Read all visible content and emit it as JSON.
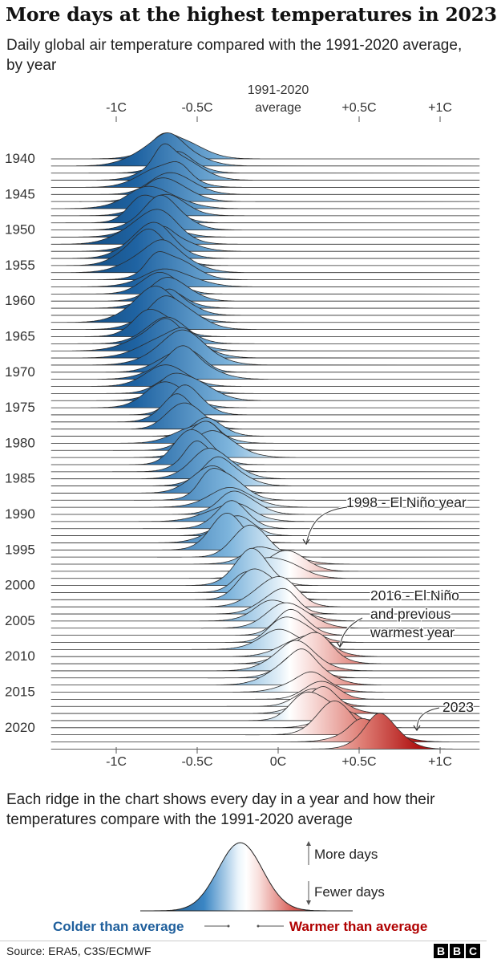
{
  "header": {
    "title": "More days at the highest temperatures in 2023",
    "subtitle": "Daily global air temperature compared with the 1991-2020 average, by year"
  },
  "chart_data": {
    "type": "ridgeline",
    "x_unit": "°C anomaly vs 1991-2020 average",
    "xlim": [
      -1.4,
      1.2
    ],
    "top_axis": {
      "ticks": [
        {
          "value": -1.0,
          "label": "-1C"
        },
        {
          "value": -0.5,
          "label": "-0.5C"
        },
        {
          "value": 0.5,
          "label": "+0.5C"
        },
        {
          "value": 1.0,
          "label": "+1C"
        }
      ],
      "center_label": [
        "1991-2020",
        "average"
      ],
      "center_value": 0.0
    },
    "bottom_axis": {
      "ticks": [
        {
          "value": -1.0,
          "label": "-1C"
        },
        {
          "value": -0.5,
          "label": "-0.5C"
        },
        {
          "value": 0.0,
          "label": "0C"
        },
        {
          "value": 0.5,
          "label": "+0.5C"
        },
        {
          "value": 1.0,
          "label": "+1C"
        }
      ]
    },
    "y_labels": [
      "1940",
      "1945",
      "1950",
      "1955",
      "1960",
      "1965",
      "1970",
      "1975",
      "1980",
      "1985",
      "1990",
      "1995",
      "2000",
      "2005",
      "2010",
      "2015",
      "2020"
    ],
    "years": [
      1940,
      2023
    ],
    "yearly_mean_anomaly": [
      {
        "year": 1940,
        "mean": -0.63
      },
      {
        "year": 1945,
        "mean": -0.66
      },
      {
        "year": 1950,
        "mean": -0.78
      },
      {
        "year": 1955,
        "mean": -0.74
      },
      {
        "year": 1960,
        "mean": -0.66
      },
      {
        "year": 1965,
        "mean": -0.7
      },
      {
        "year": 1970,
        "mean": -0.62
      },
      {
        "year": 1975,
        "mean": -0.64
      },
      {
        "year": 1980,
        "mean": -0.45
      },
      {
        "year": 1985,
        "mean": -0.44
      },
      {
        "year": 1990,
        "mean": -0.3
      },
      {
        "year": 1995,
        "mean": -0.25
      },
      {
        "year": 1998,
        "mean": 0.05
      },
      {
        "year": 2000,
        "mean": -0.1
      },
      {
        "year": 2005,
        "mean": 0.02
      },
      {
        "year": 2010,
        "mean": 0.1
      },
      {
        "year": 2015,
        "mean": 0.22
      },
      {
        "year": 2016,
        "mean": 0.3
      },
      {
        "year": 2020,
        "mean": 0.3
      },
      {
        "year": 2023,
        "mean": 0.6
      }
    ],
    "colors": {
      "cold": "#0c4a7c",
      "neutral": "#ffffff",
      "warm": "#8a0a0a",
      "line": "#333333"
    },
    "annotations": [
      {
        "year": 1998,
        "lines": [
          "1998 - El Niño year"
        ]
      },
      {
        "year": 2016,
        "lines": [
          "2016 - El Niño",
          "and previous",
          "warmest year"
        ]
      },
      {
        "year": 2023,
        "lines": [
          "2023"
        ]
      }
    ]
  },
  "legend": {
    "description": "Each ridge in the chart shows every day in a year and how their temperatures compare with the 1991-2020 average",
    "more_days": "More days",
    "fewer_days": "Fewer days",
    "colder": "Colder than average",
    "warmer": "Warmer than average",
    "colder_color": "#1f5f9c",
    "warmer_color": "#b00000"
  },
  "footer": {
    "source": "Source: ERA5, C3S/ECMWF",
    "logo": [
      "B",
      "B",
      "C"
    ]
  }
}
